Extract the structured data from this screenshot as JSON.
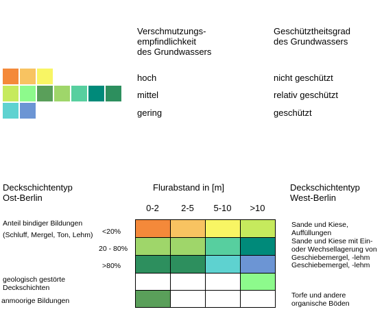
{
  "colors": {
    "orange": "#f4893a",
    "light_orange": "#f8c361",
    "yellow": "#f8f564",
    "lime": "#c6ea5d",
    "light_green": "#9fd66a",
    "pale_green": "#8dfa8c",
    "mid_green": "#5a9f5a",
    "sea_green": "#2d8f5e",
    "teal_light": "#57cf9f",
    "teal": "#008a7a",
    "aqua": "#5ed2d0",
    "blue": "#6c95d4",
    "white": "#ffffff"
  },
  "legend": {
    "col1_header": "Verschmutzungs-\nempfindlichkeit\ndes Grundwassers",
    "col2_header": "Geschütztheitsgrad\ndes Grundwassers",
    "rows": [
      {
        "sensitivity": "hoch",
        "protection": "nicht geschützt",
        "swatches": [
          "orange",
          "light_orange",
          "yellow"
        ]
      },
      {
        "sensitivity": "mittel",
        "protection": "relativ geschützt",
        "swatches": [
          "lime",
          "pale_green",
          "mid_green",
          "light_green",
          "teal_light",
          "teal",
          "sea_green"
        ]
      },
      {
        "sensitivity": "gering",
        "protection": "geschützt",
        "swatches": [
          "aqua",
          "blue"
        ]
      }
    ]
  },
  "matrix": {
    "left_header": "Deckschichtentyp\nOst-Berlin",
    "center_header": "Flurabstand in [m]",
    "right_header": "Deckschichtentyp\nWest-Berlin",
    "columns": [
      "0-2",
      "2-5",
      "5-10",
      ">10"
    ],
    "left_labels": {
      "binding_line1": "Anteil bindiger Bildungen",
      "binding_line2": "(Schluff, Mergel, Ton, Lehm)",
      "pct1": "<20%",
      "pct2": "20 - 80%",
      "pct3": ">80%",
      "disturbed": "geologisch gestörte\nDeckschichten",
      "bog": "anmoorige Bildungen"
    },
    "right_labels": {
      "r1": "Sande und Kiese,\nAuffüllungen",
      "r2": "Sande und Kiese mit Ein-\noder Wechsellagerung von\nGeschiebemergel, -lehm",
      "r3": "Geschiebemergel, -lehm",
      "r5": "Torfe und andere\norganische Böden"
    },
    "grid": [
      [
        "orange",
        "light_orange",
        "yellow",
        "lime"
      ],
      [
        "light_green",
        "light_green",
        "teal_light",
        "teal"
      ],
      [
        "sea_green",
        "sea_green",
        "aqua",
        "blue"
      ],
      [
        "white",
        "white",
        "white",
        "pale_green"
      ],
      [
        "mid_green",
        "white",
        "white",
        "white"
      ]
    ]
  }
}
